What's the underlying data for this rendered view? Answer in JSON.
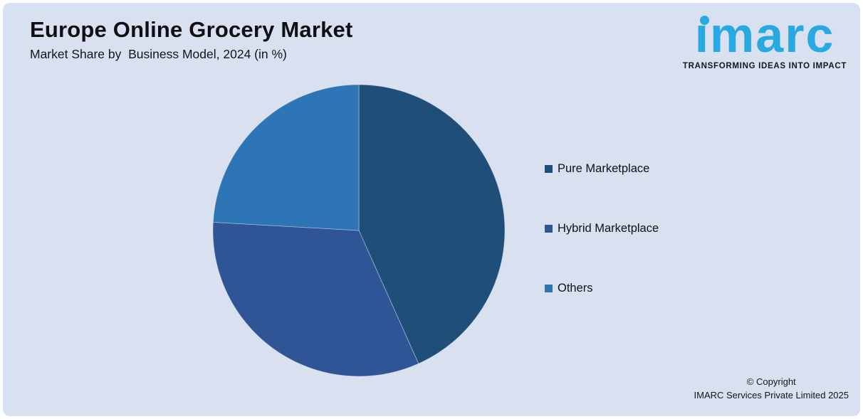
{
  "page": {
    "background": "#ffffff",
    "panel_background": "#d9e1f1"
  },
  "header": {
    "title": "Europe Online Grocery Market",
    "subtitle": "Market Share by  Business Model, 2024 (in %)"
  },
  "logo": {
    "text": "imarc",
    "tagline": "TRANSFORMING IDEAS INTO IMPACT",
    "brand_color": "#29a9e1"
  },
  "chart_data": {
    "type": "pie",
    "title": "Europe Online Grocery Market",
    "subtitle": "Market Share by  Business Model, 2024 (in %)",
    "unit": "%",
    "categories": [
      "Pure Marketplace",
      "Hybrid Marketplace",
      "Others"
    ],
    "values": [
      43.3,
      32.6,
      24.1
    ],
    "colors": [
      "#1f4e79",
      "#2f5597",
      "#2e75b6"
    ],
    "start_angle_deg": 0,
    "direction": "clockwise",
    "legend_position": "right",
    "data_labels": false
  },
  "legend": {
    "items": [
      {
        "label": "Pure Marketplace",
        "color": "#1f4e79"
      },
      {
        "label": "Hybrid Marketplace",
        "color": "#2f5597"
      },
      {
        "label": "Others",
        "color": "#2e75b6"
      }
    ]
  },
  "footer": {
    "line1": "© Copyright",
    "line2": "IMARC Services Private Limited 2025"
  }
}
